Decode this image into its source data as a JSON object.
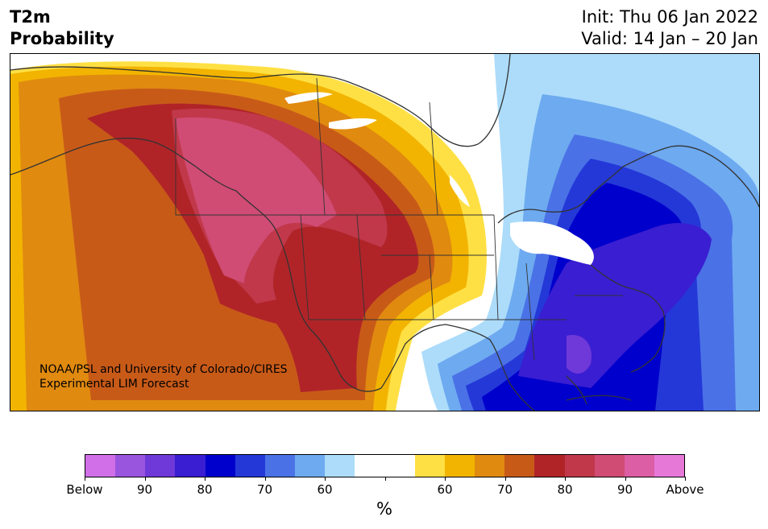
{
  "header": {
    "title_line1": "T2m",
    "title_line2": "Probability",
    "init": "Init: Thu 06 Jan 2022",
    "valid": "Valid: 14 Jan – 20 Jan"
  },
  "credit": {
    "line1": "NOAA/PSL and University of Colorado/CIRES",
    "line2": "Experimental LIM Forecast"
  },
  "colorbar": {
    "colors": [
      "#d16fe8",
      "#9a55df",
      "#6f38d8",
      "#3a1ed2",
      "#0000cc",
      "#2438d8",
      "#4a72e6",
      "#6eaaf0",
      "#acdcfa",
      "#ffffff",
      "#ffffff",
      "#ffe044",
      "#f2b400",
      "#e08a10",
      "#c85a18",
      "#b02428",
      "#c0384a",
      "#d04c74",
      "#dc5ea4",
      "#e678d8"
    ],
    "labels": [
      "Below",
      "90",
      "80",
      "70",
      "60",
      "",
      "60",
      "70",
      "80",
      "90",
      "Above"
    ],
    "unit": "%"
  },
  "map": {
    "colors": {
      "warm_light": "#ffe044",
      "warm_gold": "#f2b400",
      "warm_orange": "#e08a10",
      "warm_rust": "#c85a18",
      "warm_red": "#b02428",
      "warm_rose": "#c0384a",
      "warm_pink": "#d04c74",
      "cold_light": "#acdcfa",
      "cold_sky": "#6eaaf0",
      "cold_med": "#4a72e6",
      "cold_blue": "#2438d8",
      "cold_deep": "#0000cc",
      "cold_indigo": "#3a1ed2",
      "cold_violet": "#6f38d8"
    }
  }
}
